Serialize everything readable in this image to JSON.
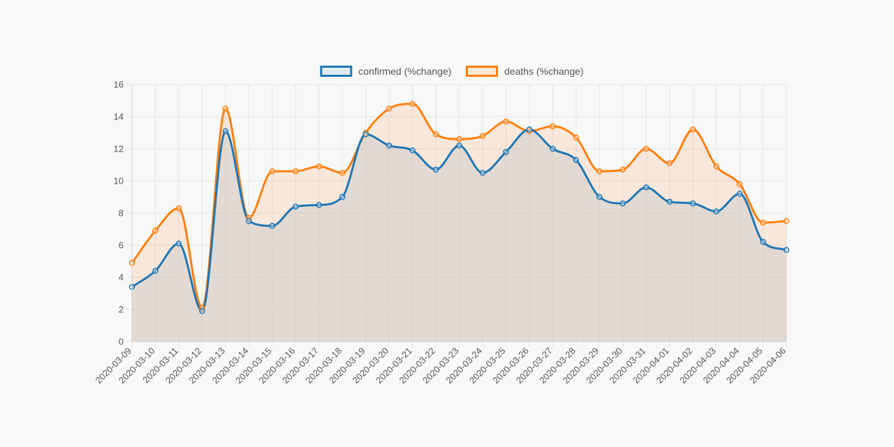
{
  "chart_data": {
    "type": "line",
    "title": "",
    "xlabel": "",
    "ylabel": "",
    "ylim": [
      0,
      16
    ],
    "yticks": [
      0,
      2,
      4,
      6,
      8,
      10,
      12,
      14,
      16
    ],
    "grid": true,
    "legend_position": "top-center",
    "categories": [
      "2020-03-09",
      "2020-03-10",
      "2020-03-11",
      "2020-03-12",
      "2020-03-13",
      "2020-03-14",
      "2020-03-15",
      "2020-03-16",
      "2020-03-17",
      "2020-03-18",
      "2020-03-19",
      "2020-03-20",
      "2020-03-21",
      "2020-03-22",
      "2020-03-23",
      "2020-03-24",
      "2020-03-25",
      "2020-03-26",
      "2020-03-27",
      "2020-03-28",
      "2020-03-29",
      "2020-03-30",
      "2020-03-31",
      "2020-04-01",
      "2020-04-02",
      "2020-04-03",
      "2020-04-04",
      "2020-04-05",
      "2020-04-06"
    ],
    "series": [
      {
        "name": "confirmed (%change)",
        "color": "#1f77b4",
        "fill": "rgba(200,200,200,0.45)",
        "values": [
          3.4,
          4.4,
          6.1,
          1.9,
          13.1,
          7.5,
          7.2,
          8.4,
          8.5,
          9.0,
          12.9,
          12.2,
          11.9,
          10.7,
          12.2,
          10.5,
          11.8,
          13.2,
          12.0,
          11.3,
          9.0,
          8.6,
          9.6,
          8.7,
          8.6,
          8.1,
          9.2,
          6.2,
          5.7
        ]
      },
      {
        "name": "deaths (%change)",
        "color": "#ff7f0e",
        "fill": "rgba(255,127,14,0.12)",
        "values": [
          4.9,
          6.9,
          8.3,
          2.1,
          14.5,
          7.7,
          10.6,
          10.6,
          10.9,
          10.5,
          13.0,
          14.5,
          14.8,
          12.9,
          12.6,
          12.8,
          13.7,
          13.1,
          13.4,
          12.7,
          10.6,
          10.7,
          12.0,
          11.1,
          13.2,
          10.9,
          9.8,
          7.4,
          7.5
        ]
      }
    ]
  }
}
